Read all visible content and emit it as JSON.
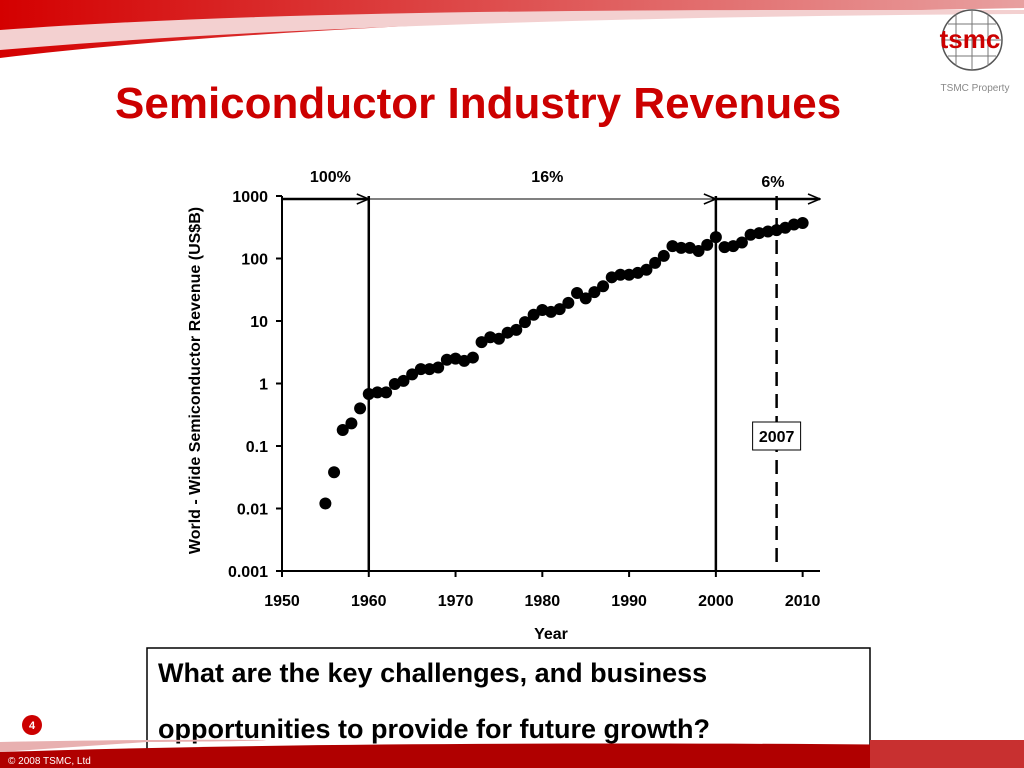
{
  "title": "Semiconductor Industry Revenues",
  "logo_text": "tsmc",
  "property_label": "TSMC Property",
  "chart_data": {
    "type": "scatter",
    "x": [
      1955,
      1956,
      1957,
      1958,
      1959,
      1960,
      1961,
      1962,
      1963,
      1964,
      1965,
      1966,
      1967,
      1968,
      1969,
      1970,
      1971,
      1972,
      1973,
      1974,
      1975,
      1976,
      1977,
      1978,
      1979,
      1980,
      1981,
      1982,
      1983,
      1984,
      1985,
      1986,
      1987,
      1988,
      1989,
      1990,
      1991,
      1992,
      1993,
      1994,
      1995,
      1996,
      1997,
      1998,
      1999,
      2000,
      2001,
      2002,
      2003,
      2004,
      2005,
      2006,
      2007,
      2008,
      2009,
      2010
    ],
    "values": [
      0.012,
      0.038,
      0.18,
      0.23,
      0.4,
      0.68,
      0.72,
      0.72,
      0.98,
      1.1,
      1.4,
      1.7,
      1.7,
      1.8,
      2.4,
      2.5,
      2.3,
      2.6,
      4.6,
      5.5,
      5.2,
      6.5,
      7.2,
      9.6,
      12.6,
      15,
      14,
      15.5,
      19.5,
      28,
      23,
      29,
      36,
      50,
      55,
      55,
      59,
      66,
      85,
      110,
      158,
      148,
      148,
      132,
      165,
      220,
      152,
      158,
      180,
      240,
      255,
      270,
      285,
      310,
      350,
      370
    ],
    "color": "#000000",
    "xlabel": "Year",
    "ylabel": "World - Wide Semiconductor Revenue (US$B)",
    "xlim": [
      1950,
      2012
    ],
    "xticks": [
      1950,
      1960,
      1970,
      1980,
      1990,
      2000,
      2010
    ],
    "ylim": [
      0.001,
      1000
    ],
    "yticks": [
      0.001,
      0.01,
      0.1,
      1,
      10,
      100,
      1000
    ],
    "ylog": true,
    "vlines": [
      {
        "x": 1960,
        "style": "solid"
      },
      {
        "x": 2000,
        "style": "solid"
      },
      {
        "x": 2007,
        "style": "dashed",
        "label": "2007"
      }
    ],
    "growth_arrows": [
      {
        "label": "100%",
        "from": 1950,
        "to": 1960
      },
      {
        "label": "16%",
        "from": 1960,
        "to": 2000
      },
      {
        "label": "6%",
        "from": 2000,
        "to": 2012
      }
    ]
  },
  "question": [
    "What are the key challenges, and business",
    "opportunities to provide for future growth?"
  ],
  "slide_number": "4",
  "copyright": "© 2008 TSMC, Ltd"
}
